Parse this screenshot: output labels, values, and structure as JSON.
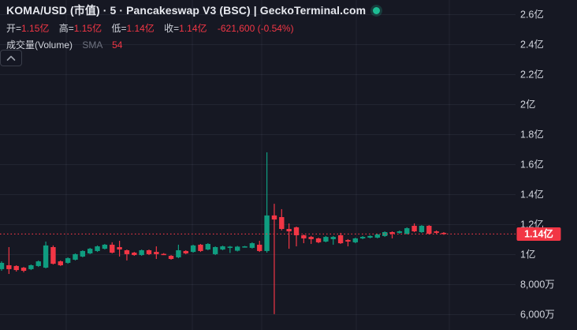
{
  "header": {
    "title": "KOMA/USD (市值) · 5 · Pancakeswap V3 (BSC) | GeckoTerminal.com",
    "ohlc": [
      {
        "label": "开=",
        "value": "1.15亿"
      },
      {
        "label": "高=",
        "value": "1.15亿"
      },
      {
        "label": "低=",
        "value": "1.14亿"
      },
      {
        "label": "收=",
        "value": "1.14亿"
      }
    ],
    "change": "-621,600 (-0.54%)",
    "volume_row": {
      "label": "成交量(Volume)",
      "sma_label": "SMA",
      "sma_value": "54"
    }
  },
  "colors": {
    "background": "#161823",
    "up": "#0f9d80",
    "down": "#f23645",
    "price_line": "#f23645",
    "badge": "#f23645",
    "badge_text": "#ffffff",
    "axis_text": "#d3d6de",
    "grid": "rgba(180,190,215,0.08)",
    "status_dot": "#1dbd94"
  },
  "chart_data": {
    "type": "candlestick",
    "title": "KOMA/USD (市值) · 5 · Pancakeswap V3 (BSC)",
    "interval_minutes": 5,
    "value_unit": "亿",
    "grid": true,
    "y_axis": {
      "side": "right",
      "min": 0.55,
      "max": 2.65,
      "ticks": [
        {
          "label": "2.6亿",
          "value": 2.6
        },
        {
          "label": "2.4亿",
          "value": 2.4
        },
        {
          "label": "2.2亿",
          "value": 2.2
        },
        {
          "label": "2亿",
          "value": 2.0
        },
        {
          "label": "1.8亿",
          "value": 1.8
        },
        {
          "label": "1.6亿",
          "value": 1.6
        },
        {
          "label": "1.4亿",
          "value": 1.4
        },
        {
          "label": "1.2亿",
          "value": 1.2
        },
        {
          "label": "1亿",
          "value": 1.0
        },
        {
          "label": "8,000万",
          "value": 0.8
        },
        {
          "label": "6,000万",
          "value": 0.6
        }
      ]
    },
    "last_price": {
      "label": "1.14亿",
      "value": 1.137
    },
    "ohlc_legend": {
      "open": "1.15亿",
      "high": "1.15亿",
      "low": "1.14亿",
      "close": "1.14亿",
      "change": "-621,600 (-0.54%)"
    },
    "candles": [
      [
        0.903,
        0.955,
        0.892,
        0.945
      ],
      [
        0.929,
        1.05,
        0.871,
        0.903
      ],
      [
        0.924,
        0.929,
        0.887,
        0.897
      ],
      [
        0.913,
        0.918,
        0.882,
        0.892
      ],
      [
        0.903,
        0.934,
        0.897,
        0.929
      ],
      [
        0.924,
        0.961,
        0.918,
        0.955
      ],
      [
        0.913,
        1.087,
        0.908,
        1.061
      ],
      [
        1.05,
        1.061,
        0.934,
        0.939
      ],
      [
        0.955,
        0.961,
        0.924,
        0.929
      ],
      [
        0.945,
        0.982,
        0.939,
        0.976
      ],
      [
        0.966,
        1.008,
        0.961,
        1.003
      ],
      [
        0.987,
        1.029,
        0.982,
        1.024
      ],
      [
        1.008,
        1.045,
        1.003,
        1.039
      ],
      [
        1.024,
        1.061,
        1.018,
        1.055
      ],
      [
        1.039,
        1.071,
        1.034,
        1.066
      ],
      [
        1.066,
        1.082,
        1.008,
        1.013
      ],
      [
        1.05,
        1.092,
        0.987,
        1.034
      ],
      [
        1.029,
        1.034,
        0.961,
        1.003
      ],
      [
        1.013,
        1.018,
        0.992,
        0.997
      ],
      [
        0.997,
        1.034,
        0.992,
        1.029
      ],
      [
        1.029,
        1.034,
        0.997,
        1.003
      ],
      [
        1.018,
        1.055,
        0.971,
        1.003
      ],
      [
        1.005,
        1.01,
        0.997,
        1.001
      ],
      [
        0.992,
        0.997,
        0.966,
        0.971
      ],
      [
        0.982,
        1.066,
        0.976,
        1.029
      ],
      [
        1.024,
        1.029,
        1.003,
        1.008
      ],
      [
        1.018,
        1.066,
        1.013,
        1.061
      ],
      [
        1.066,
        1.071,
        1.018,
        1.024
      ],
      [
        1.034,
        1.076,
        1.029,
        1.071
      ],
      [
        1.003,
        1.055,
        0.997,
        1.05
      ],
      [
        1.034,
        1.06,
        1.029,
        1.055
      ],
      [
        1.05,
        1.058,
        1.011,
        1.053
      ],
      [
        1.026,
        1.058,
        1.021,
        1.053
      ],
      [
        1.053,
        1.058,
        1.047,
        1.055
      ],
      [
        1.045,
        1.082,
        1.04,
        1.076
      ],
      [
        1.066,
        1.092,
        1.018,
        1.024
      ],
      [
        1.024,
        1.682,
        1.013,
        1.261
      ],
      [
        1.261,
        1.339,
        0.603,
        1.234
      ],
      [
        1.25,
        1.303,
        1.161,
        1.171
      ],
      [
        1.171,
        1.208,
        1.039,
        1.155
      ],
      [
        1.182,
        1.187,
        1.055,
        1.129
      ],
      [
        1.129,
        1.134,
        1.076,
        1.108
      ],
      [
        1.118,
        1.124,
        1.071,
        1.103
      ],
      [
        1.108,
        1.113,
        1.076,
        1.082
      ],
      [
        1.087,
        1.124,
        1.082,
        1.118
      ],
      [
        1.103,
        1.124,
        1.066,
        1.118
      ],
      [
        1.129,
        1.145,
        1.071,
        1.076
      ],
      [
        1.097,
        1.103,
        1.055,
        1.087
      ],
      [
        1.082,
        1.113,
        1.076,
        1.108
      ],
      [
        1.108,
        1.124,
        1.103,
        1.118
      ],
      [
        1.113,
        1.129,
        1.108,
        1.124
      ],
      [
        1.113,
        1.139,
        1.108,
        1.134
      ],
      [
        1.124,
        1.155,
        1.118,
        1.15
      ],
      [
        1.15,
        1.155,
        1.108,
        1.139
      ],
      [
        1.145,
        1.161,
        1.139,
        1.155
      ],
      [
        1.139,
        1.182,
        1.134,
        1.176
      ],
      [
        1.192,
        1.208,
        1.15,
        1.155
      ],
      [
        1.15,
        1.197,
        1.145,
        1.192
      ],
      [
        1.192,
        1.197,
        1.134,
        1.139
      ],
      [
        1.155,
        1.161,
        1.139,
        1.145
      ],
      [
        1.145,
        1.15,
        1.132,
        1.137
      ]
    ]
  }
}
